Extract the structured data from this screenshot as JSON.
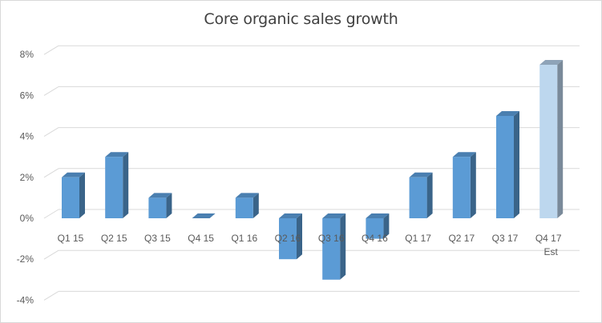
{
  "chart_data": {
    "type": "bar",
    "title": "Core organic sales growth",
    "xlabel": "",
    "ylabel": "",
    "categories": [
      "Q1 15",
      "Q2 15",
      "Q3 15",
      "Q4 15",
      "Q1 16",
      "Q2 16",
      "Q3 16",
      "Q4 16",
      "Q1 17",
      "Q2 17",
      "Q3 17",
      "Q4 17 Est"
    ],
    "category_lines": [
      [
        "Q1 15"
      ],
      [
        "Q2 15"
      ],
      [
        "Q3 15"
      ],
      [
        "Q4 15"
      ],
      [
        "Q1 16"
      ],
      [
        "Q2 16"
      ],
      [
        "Q3 16"
      ],
      [
        "Q4 16"
      ],
      [
        "Q1 17"
      ],
      [
        "Q2 17"
      ],
      [
        "Q3 17"
      ],
      [
        "Q4 17",
        "Est"
      ]
    ],
    "series": [
      {
        "name": "Core organic sales growth",
        "values": [
          2,
          3,
          1,
          0,
          1,
          -2,
          -3,
          -1,
          2,
          3,
          5,
          7.5
        ]
      }
    ],
    "units": "%",
    "ylim": [
      -4,
      8
    ],
    "yticks": [
      -4,
      -2,
      0,
      2,
      4,
      6,
      8
    ],
    "ytick_labels": [
      "-4%",
      "-2%",
      "0%",
      "2%",
      "4%",
      "6%",
      "8%"
    ],
    "grid": true,
    "legend": "none",
    "style": "3d-column",
    "colors": {
      "actual_front": "#5b9bd5",
      "actual_side": "#3a6489",
      "actual_top": "#4a7fb0",
      "estimate_front": "#bdd7ee",
      "estimate_side": "#7a8a9a",
      "estimate_top": "#8ea3b8",
      "gridline": "#d9d9d9",
      "text": "#595959",
      "title": "#404040"
    },
    "highlighted_category": "Q4 17 Est"
  }
}
